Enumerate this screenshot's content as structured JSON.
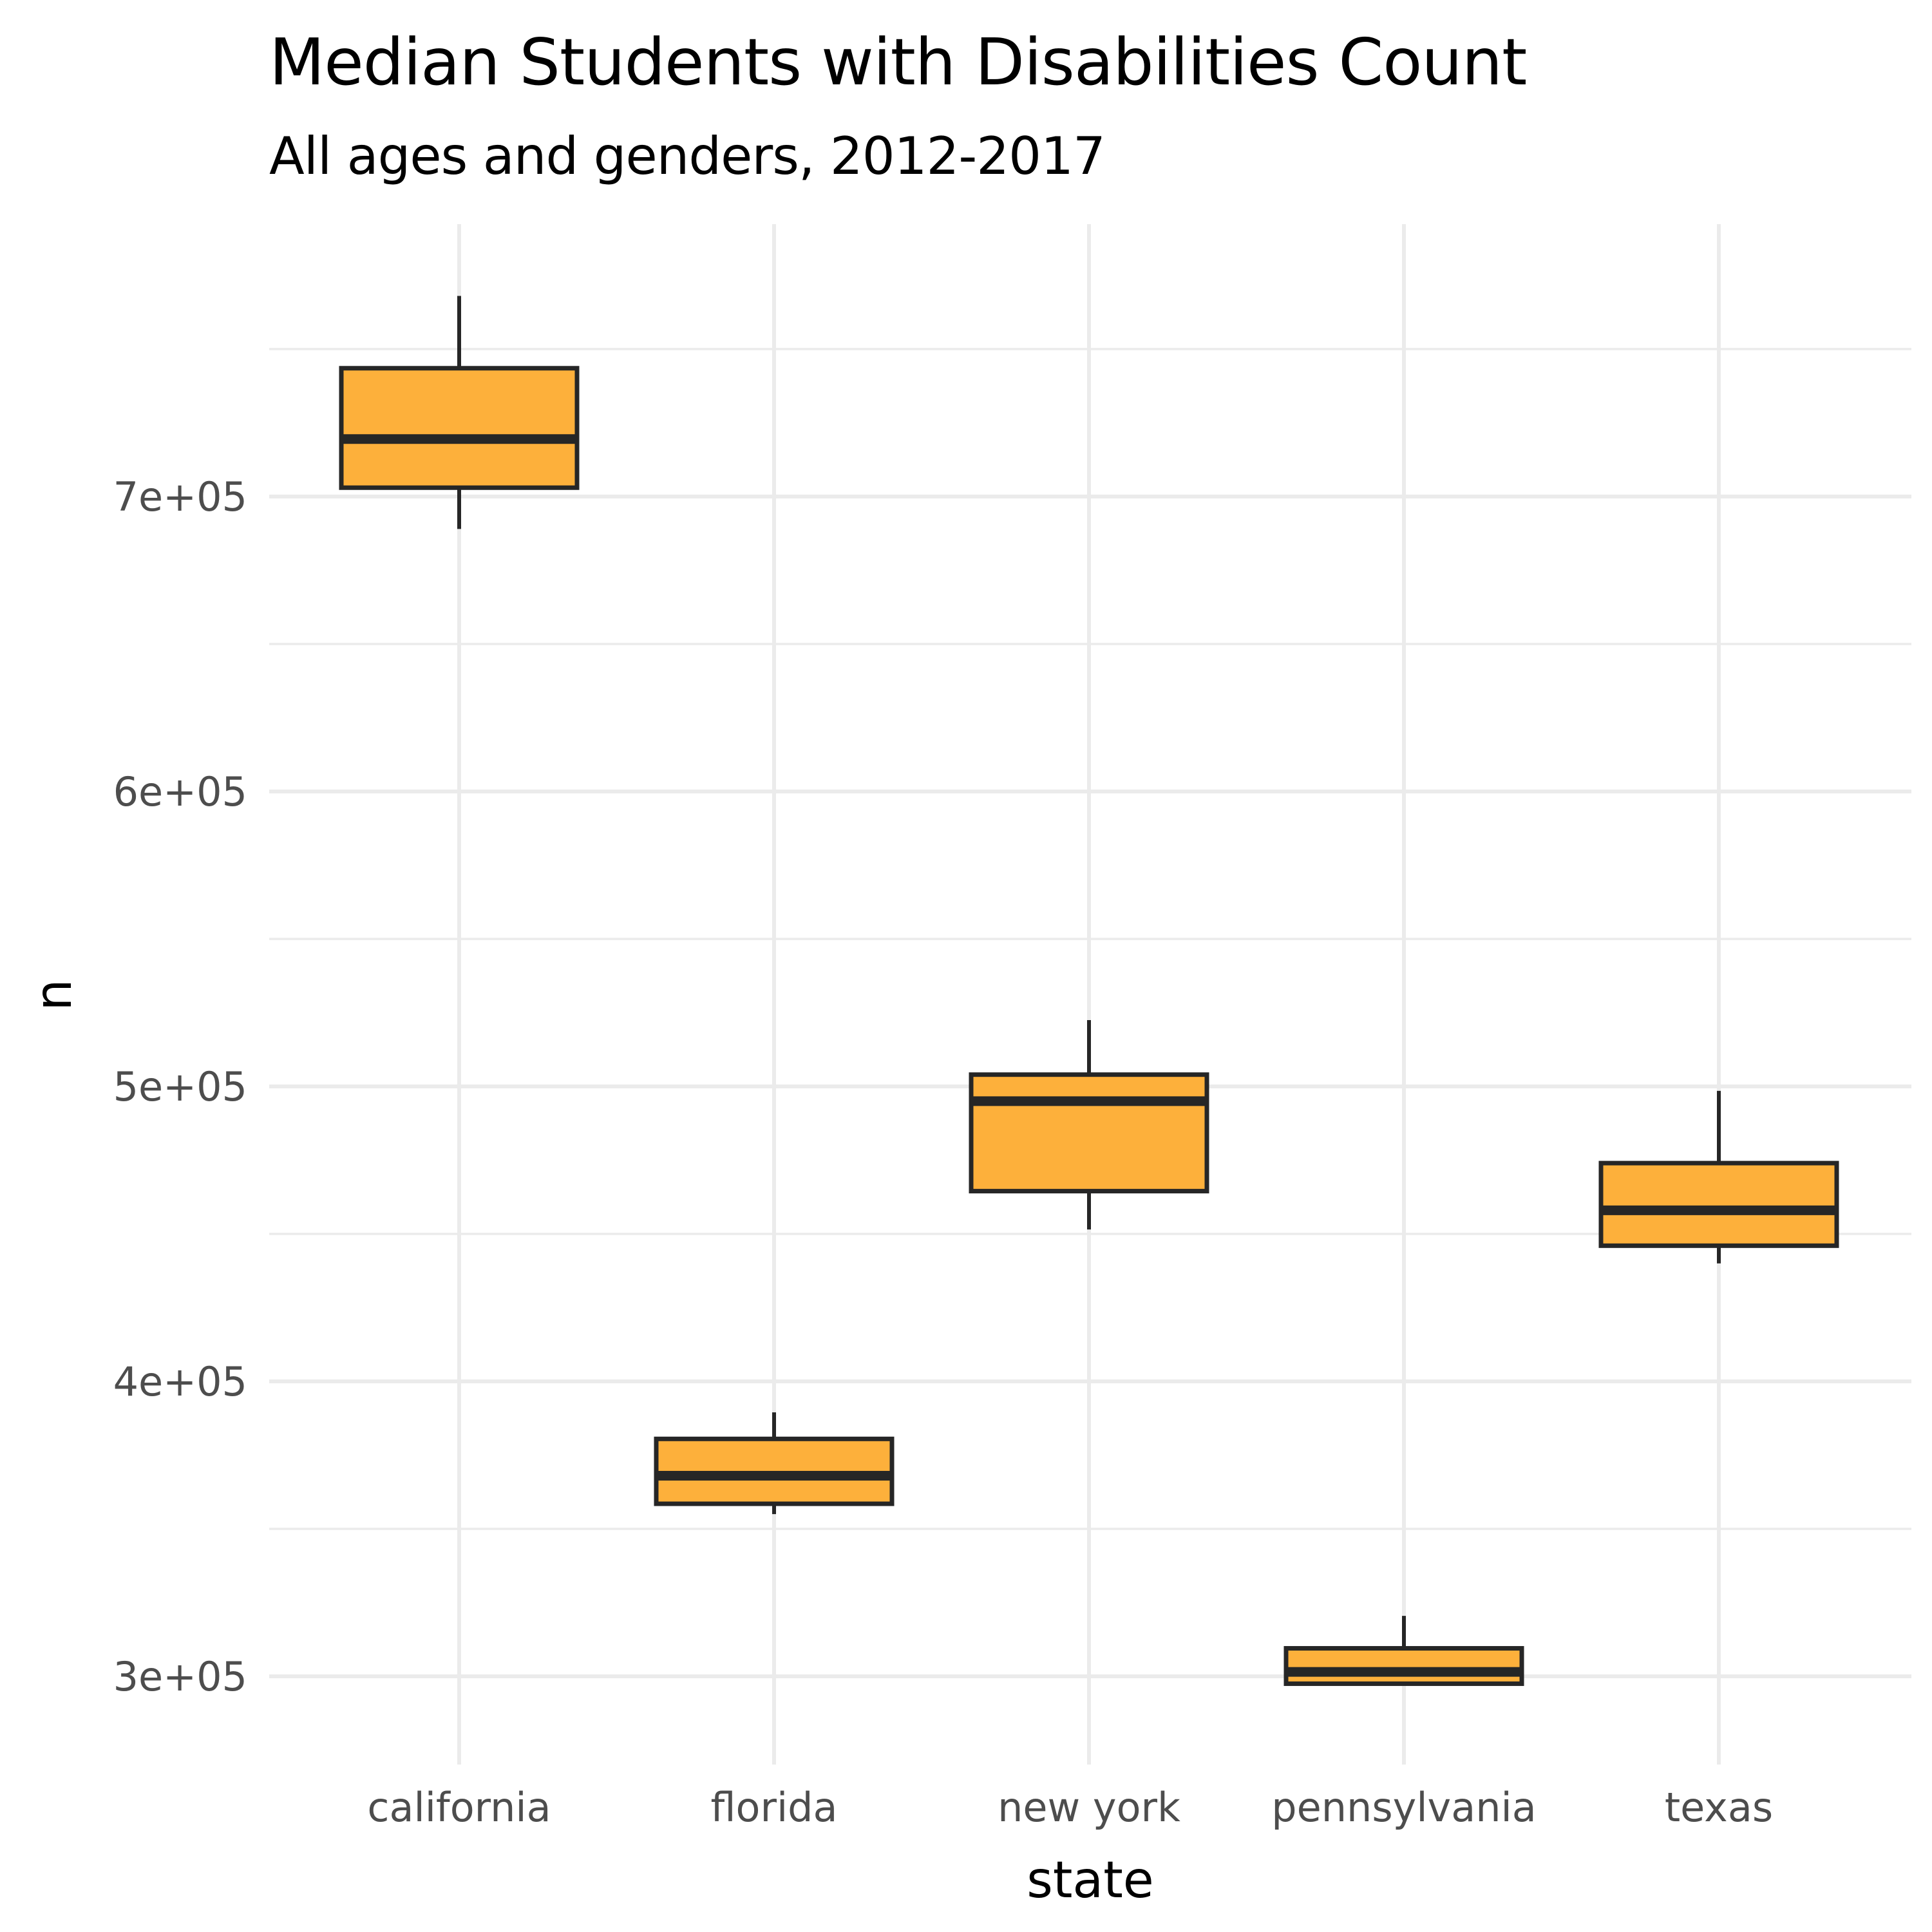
{
  "chart_data": {
    "type": "boxplot",
    "title": "Median Students with Disabilities Count",
    "subtitle": "All ages and genders, 2012-2017",
    "xlabel": "state",
    "ylabel": "n",
    "categories": [
      "california",
      "florida",
      "new york",
      "pennsylvania",
      "texas"
    ],
    "boxes": [
      {
        "category": "california",
        "whisker_low": 689000,
        "q1": 703000,
        "median": 719500,
        "q3": 743500,
        "whisker_high": 768000
      },
      {
        "category": "florida",
        "whisker_low": 355000,
        "q1": 358500,
        "median": 368000,
        "q3": 380500,
        "whisker_high": 389500
      },
      {
        "category": "new york",
        "whisker_low": 451500,
        "q1": 464500,
        "median": 495000,
        "q3": 504000,
        "whisker_high": 522500
      },
      {
        "category": "pennsylvania",
        "whisker_low": 297000,
        "q1": 297500,
        "median": 301500,
        "q3": 309500,
        "whisker_high": 320500
      },
      {
        "category": "texas",
        "whisker_low": 440000,
        "q1": 446000,
        "median": 458000,
        "q3": 474000,
        "whisker_high": 498500
      }
    ],
    "y_ticks": [
      300000,
      400000,
      500000,
      600000,
      700000
    ],
    "y_tick_labels": [
      "3e+05",
      "4e+05",
      "5e+05",
      "6e+05",
      "7e+05"
    ],
    "ylim": [
      273000,
      780000
    ],
    "grid": true,
    "legend": "none",
    "box_fill": "#FDB03B",
    "box_stroke": "#262626",
    "grid_color": "#EBEBEB"
  }
}
